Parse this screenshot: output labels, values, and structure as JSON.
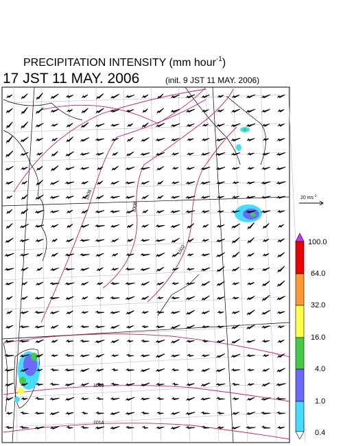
{
  "header": {
    "title": "PRECIPITATION INTENSITY (mm hour",
    "title_exponent": "-1",
    "title_close": ")",
    "valid_time": "17 JST 11 MAY. 2006",
    "init_time": "(init. 9 JST 11 MAY. 2006)"
  },
  "wind_scale": {
    "label": "20 ms",
    "exponent": "-1"
  },
  "colorbar": {
    "labels": [
      "100.0",
      "64.0",
      "32.0",
      "16.0",
      "4.0",
      "1.0",
      "0.4"
    ]
  },
  "isobars": {
    "labels": [
      "1008",
      "1008",
      "1002",
      "1008",
      "1014"
    ]
  }
}
